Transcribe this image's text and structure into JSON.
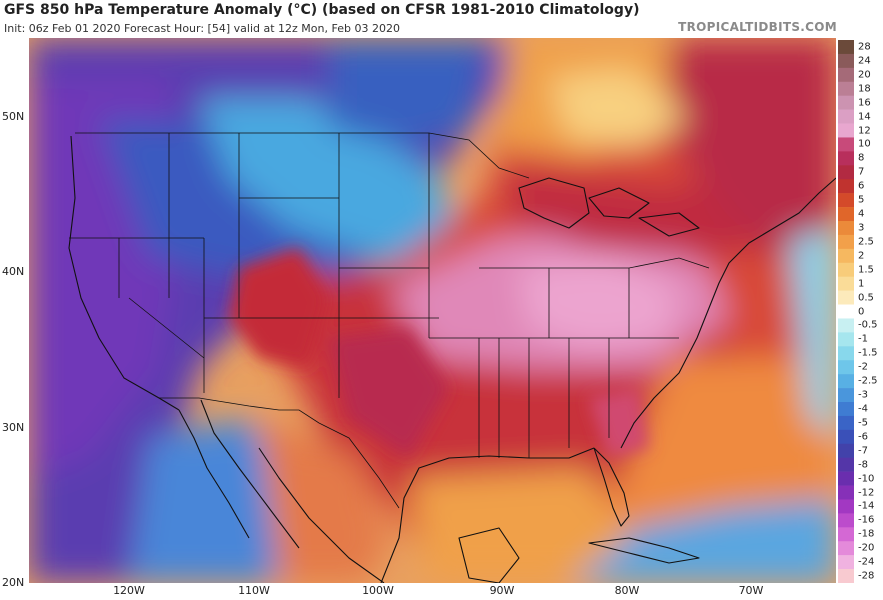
{
  "header": {
    "title": "GFS 850 hPa Temperature Anomaly (°C) (based on CFSR 1981-2010 Climatology)",
    "subtitle": "Init: 06z Feb 01 2020   Forecast Hour: [54]   valid at 12z Mon, Feb 03 2020",
    "brand": "TROPICALTIDBITS.COM"
  },
  "map": {
    "lat_labels": [
      "50N",
      "40N",
      "30N",
      "20N"
    ],
    "lon_labels": [
      "120W",
      "110W",
      "100W",
      "90W",
      "80W",
      "70W"
    ]
  },
  "colorbar": {
    "labels": [
      "28",
      "24",
      "20",
      "18",
      "16",
      "14",
      "12",
      "10",
      "8",
      "7",
      "6",
      "5",
      "4",
      "3",
      "2.5",
      "2",
      "1.5",
      "1",
      "0.5",
      "0",
      "-0.5",
      "-1",
      "-1.5",
      "-2",
      "-2.5",
      "-3",
      "-4",
      "-5",
      "-6",
      "-7",
      "-8",
      "-10",
      "-12",
      "-14",
      "-16",
      "-18",
      "-20",
      "-24",
      "-28"
    ],
    "colors": [
      "#6b4a3a",
      "#8a5a5a",
      "#a56a78",
      "#bb7f95",
      "#cc93b1",
      "#db9fc4",
      "#e8a7cf",
      "#c84a7a",
      "#b82f5c",
      "#b22a42",
      "#c0332f",
      "#d44a2a",
      "#e0662a",
      "#eb8a3a",
      "#f2a04a",
      "#f6b860",
      "#f8cc7a",
      "#fadc98",
      "#fceabb",
      "#ffffff",
      "#c8f0f2",
      "#a6e6ee",
      "#88d8ec",
      "#6ec6ea",
      "#58b0e4",
      "#4a96dc",
      "#3f7cd2",
      "#3a64c6",
      "#3a50b8",
      "#4242aa",
      "#5436a8",
      "#6a2eae",
      "#8630b8",
      "#a238c2",
      "#bc4ccc",
      "#d468d4",
      "#e48ada",
      "#f0b2e0",
      "#f8cad0"
    ]
  }
}
